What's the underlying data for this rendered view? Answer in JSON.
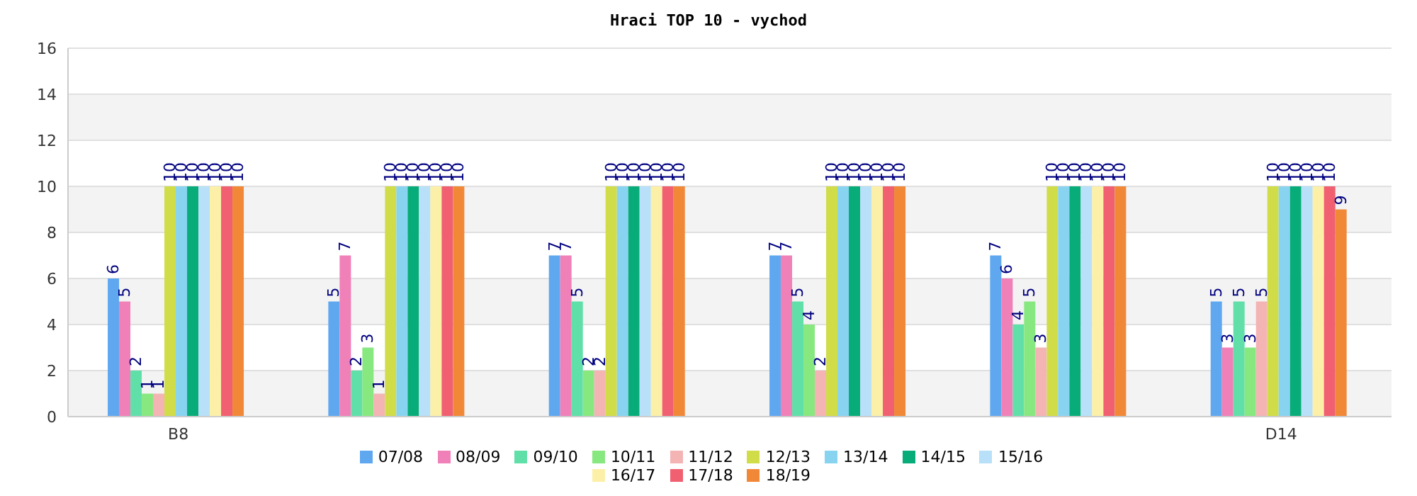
{
  "chart_data": {
    "type": "bar",
    "title": "Hraci TOP 10 - vychod",
    "categories": [
      "B8",
      null,
      null,
      null,
      null,
      "D14"
    ],
    "series": [
      {
        "name": "07/08",
        "color": "#5fa8f0",
        "values": [
          6,
          5,
          7,
          7,
          7,
          5
        ]
      },
      {
        "name": "08/09",
        "color": "#f080b8",
        "values": [
          5,
          7,
          7,
          7,
          6,
          3
        ]
      },
      {
        "name": "09/10",
        "color": "#60e0a8",
        "values": [
          2,
          2,
          5,
          5,
          4,
          5
        ]
      },
      {
        "name": "10/11",
        "color": "#88e880",
        "values": [
          1,
          3,
          2,
          4,
          5,
          3
        ]
      },
      {
        "name": "11/12",
        "color": "#f4b4b4",
        "values": [
          1,
          1,
          2,
          2,
          3,
          5
        ]
      },
      {
        "name": "12/13",
        "color": "#d0dc48",
        "values": [
          10,
          10,
          10,
          10,
          10,
          10
        ]
      },
      {
        "name": "13/14",
        "color": "#88d4f0",
        "values": [
          10,
          10,
          10,
          10,
          10,
          10
        ]
      },
      {
        "name": "14/15",
        "color": "#08ac78",
        "values": [
          10,
          10,
          10,
          10,
          10,
          10
        ]
      },
      {
        "name": "15/16",
        "color": "#b8e0f8",
        "values": [
          10,
          10,
          10,
          10,
          10,
          10
        ]
      },
      {
        "name": "16/17",
        "color": "#fcf0a8",
        "values": [
          10,
          10,
          10,
          10,
          10,
          10
        ]
      },
      {
        "name": "17/18",
        "color": "#f06070",
        "values": [
          10,
          10,
          10,
          10,
          10,
          10
        ]
      },
      {
        "name": "18/19",
        "color": "#f08838",
        "values": [
          10,
          10,
          10,
          10,
          10,
          9
        ]
      }
    ],
    "ylim": [
      0,
      16
    ],
    "yticks": [
      0,
      2,
      4,
      6,
      8,
      10,
      12,
      14,
      16
    ],
    "grid": "y",
    "legend": "bottom",
    "data_labels": true
  }
}
